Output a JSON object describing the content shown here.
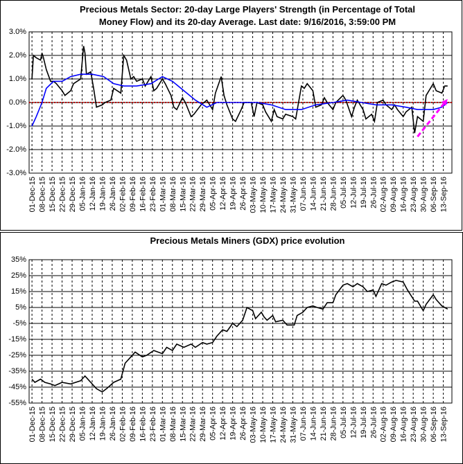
{
  "chart_data": [
    {
      "type": "line",
      "title": [
        "Precious Metals Sector: 20-day Large Players' Strength (in Percentage of Total",
        "Money Flow) and its 20-day Average. Last date: 9/16/2016, 3:59:00 PM"
      ],
      "xlim": [
        "2015-11-29",
        "2016-09-19"
      ],
      "xticks": [
        {
          "value": "2015-12-01",
          "label": "01-Dec-15"
        },
        {
          "value": "2015-12-08",
          "label": "08-Dec-15"
        },
        {
          "value": "2015-12-15",
          "label": "15-Dec-15"
        },
        {
          "value": "2015-12-22",
          "label": "22-Dec-15"
        },
        {
          "value": "2015-12-29",
          "label": "29-Dec-15"
        },
        {
          "value": "2016-01-05",
          "label": "05-Jan-16"
        },
        {
          "value": "2016-01-12",
          "label": "12-Jan-16"
        },
        {
          "value": "2016-01-19",
          "label": "19-Jan-16"
        },
        {
          "value": "2016-01-26",
          "label": "26-Jan-16"
        },
        {
          "value": "2016-02-02",
          "label": "02-Feb-16"
        },
        {
          "value": "2016-02-09",
          "label": "09-Feb-16"
        },
        {
          "value": "2016-02-16",
          "label": "16-Feb-16"
        },
        {
          "value": "2016-02-23",
          "label": "23-Feb-16"
        },
        {
          "value": "2016-03-01",
          "label": "01-Mar-16"
        },
        {
          "value": "2016-03-08",
          "label": "08-Mar-16"
        },
        {
          "value": "2016-03-15",
          "label": "15-Mar-16"
        },
        {
          "value": "2016-03-22",
          "label": "22-Mar-16"
        },
        {
          "value": "2016-03-29",
          "label": "29-Mar-16"
        },
        {
          "value": "2016-04-05",
          "label": "05-Apr-16"
        },
        {
          "value": "2016-04-12",
          "label": "12-Apr-16"
        },
        {
          "value": "2016-04-19",
          "label": "19-Apr-16"
        },
        {
          "value": "2016-04-26",
          "label": "26-Apr-16"
        },
        {
          "value": "2016-05-03",
          "label": "03-May-16"
        },
        {
          "value": "2016-05-10",
          "label": "10-May-16"
        },
        {
          "value": "2016-05-17",
          "label": "17-May-16"
        },
        {
          "value": "2016-05-24",
          "label": "24-May-16"
        },
        {
          "value": "2016-05-31",
          "label": "31-May-16"
        },
        {
          "value": "2016-06-07",
          "label": "07-Jun-16"
        },
        {
          "value": "2016-06-14",
          "label": "14-Jun-16"
        },
        {
          "value": "2016-06-21",
          "label": "21-Jun-16"
        },
        {
          "value": "2016-06-28",
          "label": "28-Jun-16"
        },
        {
          "value": "2016-07-05",
          "label": "05-Jul-16"
        },
        {
          "value": "2016-07-12",
          "label": "12-Jul-16"
        },
        {
          "value": "2016-07-19",
          "label": "19-Jul-16"
        },
        {
          "value": "2016-07-26",
          "label": "26-Jul-16"
        },
        {
          "value": "2016-08-02",
          "label": "02-Aug-16"
        },
        {
          "value": "2016-08-09",
          "label": "09-Aug-16"
        },
        {
          "value": "2016-08-16",
          "label": "16-Aug-16"
        },
        {
          "value": "2016-08-23",
          "label": "23-Aug-16"
        },
        {
          "value": "2016-08-30",
          "label": "30-Aug-16"
        },
        {
          "value": "2016-09-06",
          "label": "06-Sep-16"
        },
        {
          "value": "2016-09-13",
          "label": "13-Sep-16"
        }
      ],
      "ylim": [
        -3,
        3
      ],
      "yticks": [
        {
          "value": 3,
          "label": "3.0%"
        },
        {
          "value": 2,
          "label": "2.0%"
        },
        {
          "value": 1,
          "label": "1.0%"
        },
        {
          "value": 0,
          "label": "0.0%"
        },
        {
          "value": -1,
          "label": "-1.0%"
        },
        {
          "value": -2,
          "label": "-2.0%"
        },
        {
          "value": -3,
          "label": "-3.0%"
        }
      ],
      "xgrid": true,
      "ygrid": true,
      "hline": {
        "value": 0,
        "color": "#c00000"
      },
      "arrow": {
        "from": [
          "2016-08-26",
          -1.45
        ],
        "to": [
          "2016-09-16",
          0.15
        ],
        "color": "#ff00ff"
      },
      "series": [
        {
          "color": "#000000",
          "x": [
            "2015-12-01",
            "2015-12-02",
            "2015-12-04",
            "2015-12-07",
            "2015-12-08",
            "2015-12-09",
            "2015-12-11",
            "2015-12-14",
            "2015-12-16",
            "2015-12-18",
            "2015-12-22",
            "2015-12-24",
            "2015-12-28",
            "2015-12-30",
            "2016-01-04",
            "2016-01-06",
            "2016-01-07",
            "2016-01-08",
            "2016-01-11",
            "2016-01-13",
            "2016-01-15",
            "2016-01-19",
            "2016-01-21",
            "2016-01-25",
            "2016-01-27",
            "2016-02-01",
            "2016-02-03",
            "2016-02-05",
            "2016-02-08",
            "2016-02-10",
            "2016-02-12",
            "2016-02-16",
            "2016-02-18",
            "2016-02-22",
            "2016-02-24",
            "2016-02-26",
            "2016-03-01",
            "2016-03-03",
            "2016-03-07",
            "2016-03-09",
            "2016-03-11",
            "2016-03-15",
            "2016-03-17",
            "2016-03-21",
            "2016-03-23",
            "2016-03-28",
            "2016-03-30",
            "2016-04-01",
            "2016-04-05",
            "2016-04-07",
            "2016-04-11",
            "2016-04-13",
            "2016-04-15",
            "2016-04-19",
            "2016-04-21",
            "2016-04-25",
            "2016-04-27",
            "2016-05-02",
            "2016-05-04",
            "2016-05-06",
            "2016-05-10",
            "2016-05-12",
            "2016-05-16",
            "2016-05-18",
            "2016-05-20",
            "2016-05-24",
            "2016-05-26",
            "2016-05-31",
            "2016-06-02",
            "2016-06-06",
            "2016-06-08",
            "2016-06-10",
            "2016-06-14",
            "2016-06-16",
            "2016-06-20",
            "2016-06-22",
            "2016-06-24",
            "2016-06-28",
            "2016-06-30",
            "2016-07-05",
            "2016-07-07",
            "2016-07-11",
            "2016-07-13",
            "2016-07-15",
            "2016-07-19",
            "2016-07-21",
            "2016-07-25",
            "2016-07-27",
            "2016-07-29",
            "2016-08-02",
            "2016-08-04",
            "2016-08-08",
            "2016-08-10",
            "2016-08-12",
            "2016-08-16",
            "2016-08-18",
            "2016-08-22",
            "2016-08-24",
            "2016-08-26",
            "2016-08-30",
            "2016-09-01",
            "2016-09-06",
            "2016-09-08",
            "2016-09-12",
            "2016-09-14",
            "2016-09-16"
          ],
          "values": [
            1.0,
            2.0,
            1.9,
            1.8,
            2.1,
            1.9,
            1.4,
            0.9,
            0.9,
            0.8,
            0.5,
            0.3,
            0.5,
            0.8,
            1.0,
            2.4,
            2.1,
            1.2,
            1.3,
            0.6,
            -0.2,
            -0.1,
            0.0,
            0.1,
            0.6,
            0.4,
            2.0,
            1.8,
            1.0,
            1.1,
            0.9,
            1.0,
            0.7,
            1.1,
            0.5,
            0.6,
            1.0,
            0.8,
            0.3,
            -0.2,
            -0.3,
            0.2,
            0.0,
            -0.6,
            -0.5,
            -0.1,
            0.0,
            0.1,
            -0.3,
            0.4,
            1.1,
            0.3,
            -0.1,
            -0.7,
            -0.8,
            -0.3,
            0.0,
            0.0,
            -0.6,
            0.0,
            -0.1,
            -0.4,
            -0.8,
            -0.3,
            -0.6,
            -0.7,
            -0.5,
            -0.6,
            -0.7,
            0.7,
            0.6,
            0.8,
            0.5,
            -0.2,
            -0.1,
            0.2,
            0.0,
            -0.3,
            0.0,
            0.3,
            0.1,
            -0.6,
            -0.2,
            0.1,
            -0.3,
            -0.7,
            -0.5,
            -0.8,
            0.0,
            0.1,
            -0.1,
            -0.3,
            -0.1,
            -0.3,
            -0.6,
            -0.4,
            -0.2,
            -1.3,
            -0.6,
            -0.8,
            0.3,
            0.8,
            0.5,
            0.4,
            0.7,
            0.7
          ]
        },
        {
          "color": "#0000ff",
          "x": [
            "2015-12-01",
            "2015-12-04",
            "2015-12-08",
            "2015-12-11",
            "2015-12-16",
            "2015-12-22",
            "2015-12-28",
            "2016-01-04",
            "2016-01-12",
            "2016-01-20",
            "2016-01-27",
            "2016-02-03",
            "2016-02-12",
            "2016-02-22",
            "2016-03-01",
            "2016-03-08",
            "2016-03-16",
            "2016-03-24",
            "2016-04-01",
            "2016-04-08",
            "2016-04-18",
            "2016-04-28",
            "2016-05-06",
            "2016-05-16",
            "2016-05-26",
            "2016-06-06",
            "2016-06-16",
            "2016-06-28",
            "2016-07-08",
            "2016-07-18",
            "2016-07-28",
            "2016-08-08",
            "2016-08-18",
            "2016-08-26",
            "2016-09-06",
            "2016-09-12",
            "2016-09-16"
          ],
          "values": [
            -1.0,
            -0.6,
            0.0,
            0.6,
            0.9,
            0.9,
            1.1,
            1.2,
            1.2,
            1.1,
            0.8,
            0.7,
            0.7,
            0.8,
            1.1,
            0.9,
            0.5,
            0.1,
            -0.2,
            0.0,
            0.0,
            0.0,
            0.0,
            -0.1,
            -0.3,
            -0.3,
            -0.1,
            0.0,
            0.1,
            0.0,
            -0.1,
            -0.1,
            -0.2,
            -0.3,
            -0.3,
            -0.2,
            0.0
          ]
        }
      ]
    },
    {
      "type": "line",
      "title": [
        "Precious Metals Miners (GDX) price evolution"
      ],
      "xlim": [
        "2015-11-29",
        "2016-09-19"
      ],
      "xticks": [
        {
          "value": "2015-12-01",
          "label": "01-Dec-15"
        },
        {
          "value": "2015-12-08",
          "label": "08-Dec-15"
        },
        {
          "value": "2015-12-15",
          "label": "15-Dec-15"
        },
        {
          "value": "2015-12-22",
          "label": "22-Dec-15"
        },
        {
          "value": "2015-12-29",
          "label": "29-Dec-15"
        },
        {
          "value": "2016-01-05",
          "label": "05-Jan-16"
        },
        {
          "value": "2016-01-12",
          "label": "12-Jan-16"
        },
        {
          "value": "2016-01-19",
          "label": "19-Jan-16"
        },
        {
          "value": "2016-01-26",
          "label": "26-Jan-16"
        },
        {
          "value": "2016-02-02",
          "label": "02-Feb-16"
        },
        {
          "value": "2016-02-09",
          "label": "09-Feb-16"
        },
        {
          "value": "2016-02-16",
          "label": "16-Feb-16"
        },
        {
          "value": "2016-02-23",
          "label": "23-Feb-16"
        },
        {
          "value": "2016-03-01",
          "label": "01-Mar-16"
        },
        {
          "value": "2016-03-08",
          "label": "08-Mar-16"
        },
        {
          "value": "2016-03-15",
          "label": "15-Mar-16"
        },
        {
          "value": "2016-03-22",
          "label": "22-Mar-16"
        },
        {
          "value": "2016-03-29",
          "label": "29-Mar-16"
        },
        {
          "value": "2016-04-05",
          "label": "05-Apr-16"
        },
        {
          "value": "2016-04-12",
          "label": "12-Apr-16"
        },
        {
          "value": "2016-04-19",
          "label": "19-Apr-16"
        },
        {
          "value": "2016-04-26",
          "label": "26-Apr-16"
        },
        {
          "value": "2016-05-03",
          "label": "03-May-16"
        },
        {
          "value": "2016-05-10",
          "label": "10-May-16"
        },
        {
          "value": "2016-05-17",
          "label": "17-May-16"
        },
        {
          "value": "2016-05-24",
          "label": "24-May-16"
        },
        {
          "value": "2016-05-31",
          "label": "31-May-16"
        },
        {
          "value": "2016-06-07",
          "label": "07-Jun-16"
        },
        {
          "value": "2016-06-14",
          "label": "14-Jun-16"
        },
        {
          "value": "2016-06-21",
          "label": "21-Jun-16"
        },
        {
          "value": "2016-06-28",
          "label": "28-Jun-16"
        },
        {
          "value": "2016-07-05",
          "label": "05-Jul-16"
        },
        {
          "value": "2016-07-12",
          "label": "12-Jul-16"
        },
        {
          "value": "2016-07-19",
          "label": "19-Jul-16"
        },
        {
          "value": "2016-07-26",
          "label": "26-Jul-16"
        },
        {
          "value": "2016-08-02",
          "label": "02-Aug-16"
        },
        {
          "value": "2016-08-09",
          "label": "09-Aug-16"
        },
        {
          "value": "2016-08-16",
          "label": "16-Aug-16"
        },
        {
          "value": "2016-08-23",
          "label": "23-Aug-16"
        },
        {
          "value": "2016-08-30",
          "label": "30-Aug-16"
        },
        {
          "value": "2016-09-06",
          "label": "06-Sep-16"
        },
        {
          "value": "2016-09-13",
          "label": "13-Sep-16"
        }
      ],
      "ylim": [
        -55,
        35
      ],
      "yticks": [
        {
          "value": 35,
          "label": "35%"
        },
        {
          "value": 25,
          "label": "25%"
        },
        {
          "value": 15,
          "label": "15%"
        },
        {
          "value": 5,
          "label": "5%"
        },
        {
          "value": -5,
          "label": "-5%"
        },
        {
          "value": -15,
          "label": "-15%"
        },
        {
          "value": -25,
          "label": "-25%"
        },
        {
          "value": -35,
          "label": "-35%"
        },
        {
          "value": -45,
          "label": "-45%"
        },
        {
          "value": -55,
          "label": "-55%"
        }
      ],
      "xgrid": true,
      "ygrid": true,
      "series": [
        {
          "color": "#000000",
          "x": [
            "2015-12-01",
            "2015-12-03",
            "2015-12-07",
            "2015-12-10",
            "2015-12-14",
            "2015-12-17",
            "2015-12-22",
            "2015-12-28",
            "2016-01-04",
            "2016-01-07",
            "2016-01-12",
            "2016-01-15",
            "2016-01-19",
            "2016-01-22",
            "2016-01-27",
            "2016-02-01",
            "2016-02-04",
            "2016-02-08",
            "2016-02-11",
            "2016-02-16",
            "2016-02-19",
            "2016-02-24",
            "2016-03-01",
            "2016-03-04",
            "2016-03-08",
            "2016-03-11",
            "2016-03-16",
            "2016-03-21",
            "2016-03-24",
            "2016-03-29",
            "2016-04-01",
            "2016-04-05",
            "2016-04-08",
            "2016-04-12",
            "2016-04-15",
            "2016-04-19",
            "2016-04-22",
            "2016-04-26",
            "2016-04-29",
            "2016-05-03",
            "2016-05-05",
            "2016-05-09",
            "2016-05-11",
            "2016-05-13",
            "2016-05-17",
            "2016-05-19",
            "2016-05-24",
            "2016-05-27",
            "2016-06-01",
            "2016-06-03",
            "2016-06-07",
            "2016-06-10",
            "2016-06-14",
            "2016-06-17",
            "2016-06-21",
            "2016-06-24",
            "2016-06-28",
            "2016-06-30",
            "2016-07-05",
            "2016-07-08",
            "2016-07-12",
            "2016-07-15",
            "2016-07-19",
            "2016-07-22",
            "2016-07-26",
            "2016-07-28",
            "2016-08-01",
            "2016-08-04",
            "2016-08-08",
            "2016-08-11",
            "2016-08-16",
            "2016-08-19",
            "2016-08-24",
            "2016-08-26",
            "2016-08-30",
            "2016-09-01",
            "2016-09-06",
            "2016-09-08",
            "2016-09-12",
            "2016-09-14",
            "2016-09-16"
          ],
          "values": [
            -40,
            -42,
            -40,
            -42,
            -43,
            -44,
            -42,
            -43,
            -41,
            -38,
            -43,
            -46,
            -48,
            -46,
            -42,
            -40,
            -30,
            -26,
            -23,
            -26,
            -25,
            -22,
            -24,
            -20,
            -22,
            -18,
            -20,
            -18,
            -20,
            -17,
            -18,
            -17,
            -13,
            -9,
            -10,
            -5,
            -7,
            -3,
            5,
            3,
            -2,
            2,
            -1,
            -3,
            0,
            -4,
            -3,
            -6,
            -6,
            0,
            2,
            5,
            6,
            5,
            4,
            8,
            8,
            13,
            19,
            20,
            18,
            20,
            18,
            15,
            16,
            12,
            20,
            19,
            21,
            22,
            21,
            16,
            9,
            9,
            3,
            7,
            13,
            10,
            6,
            5,
            4
          ]
        }
      ]
    }
  ]
}
